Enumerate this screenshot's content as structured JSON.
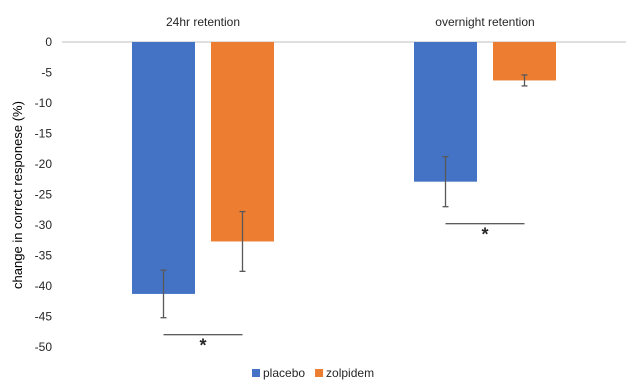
{
  "chart_data": {
    "type": "bar",
    "categories": [
      "24hr retention",
      "overnight retention"
    ],
    "series": [
      {
        "name": "placebo",
        "color": "#4472C4",
        "values": [
          -41.3,
          -22.9
        ],
        "error": [
          3.9,
          4.1
        ]
      },
      {
        "name": "zolpidem",
        "color": "#ED7D31",
        "values": [
          -32.7,
          -6.3
        ],
        "error": [
          4.9,
          0.9
        ]
      }
    ],
    "ylabel": "change in correct responese (%)",
    "xlabel": "",
    "ylim": [
      -50,
      0
    ],
    "yticks": [
      0,
      -5,
      -10,
      -15,
      -20,
      -25,
      -30,
      -35,
      -40,
      -45,
      -50
    ],
    "significance": [
      "*",
      "*"
    ],
    "legend_position": "bottom",
    "grid": false
  }
}
